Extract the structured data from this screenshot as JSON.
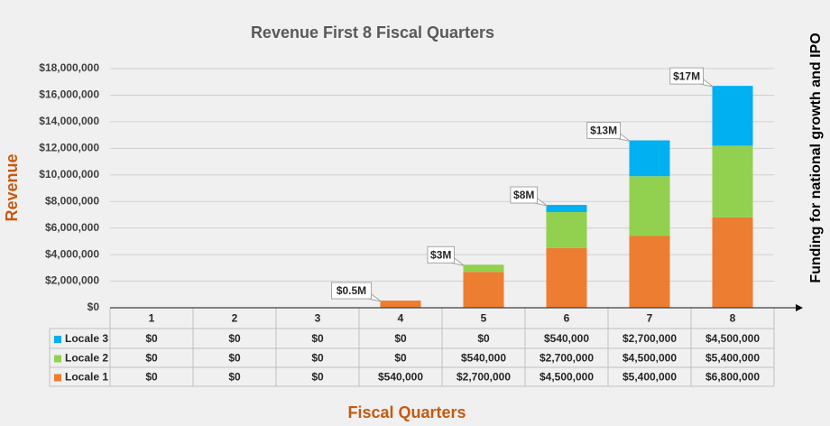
{
  "chart_data": {
    "type": "stacked_bar",
    "title": "Revenue First 8 Fiscal Quarters",
    "x_label": "Fiscal Quarters",
    "y_label": "Revenue",
    "right_annotation": "Funding for national growth and IPO",
    "categories": [
      "1",
      "2",
      "3",
      "4",
      "5",
      "6",
      "7",
      "8"
    ],
    "series": [
      {
        "name": "Locale 3",
        "color": "#00b0f0",
        "values": [
          0,
          0,
          0,
          0,
          0,
          540000,
          2700000,
          4500000
        ],
        "value_labels": [
          "$0",
          "$0",
          "$0",
          "$0",
          "$0",
          "$540,000",
          "$2,700,000",
          "$4,500,000"
        ]
      },
      {
        "name": "Locale 2",
        "color": "#92d050",
        "values": [
          0,
          0,
          0,
          0,
          540000,
          2700000,
          4500000,
          5400000
        ],
        "value_labels": [
          "$0",
          "$0",
          "$0",
          "$0",
          "$540,000",
          "$2,700,000",
          "$4,500,000",
          "$5,400,000"
        ]
      },
      {
        "name": "Locale 1",
        "color": "#ed7d31",
        "values": [
          0,
          0,
          0,
          540000,
          2700000,
          4500000,
          5400000,
          6800000
        ],
        "value_labels": [
          "$0",
          "$0",
          "$0",
          "$540,000",
          "$2,700,000",
          "$4,500,000",
          "$5,400,000",
          "$6,800,000"
        ]
      }
    ],
    "total_labels": [
      null,
      null,
      null,
      "$0.5M",
      "$3M",
      "$8M",
      "$13M",
      "$17M"
    ],
    "ylim": [
      0,
      18000000
    ],
    "yticks": [
      {
        "value": 0,
        "label": "$0"
      },
      {
        "value": 2000000,
        "label": "$2,000,000"
      },
      {
        "value": 4000000,
        "label": "$4,000,000"
      },
      {
        "value": 6000000,
        "label": "$6,000,000"
      },
      {
        "value": 8000000,
        "label": "$8,000,000"
      },
      {
        "value": 10000000,
        "label": "$10,000,000"
      },
      {
        "value": 12000000,
        "label": "$12,000,000"
      },
      {
        "value": 14000000,
        "label": "$14,000,000"
      },
      {
        "value": 16000000,
        "label": "$16,000,000"
      },
      {
        "value": 18000000,
        "label": "$18,000,000"
      }
    ],
    "grid": true
  }
}
